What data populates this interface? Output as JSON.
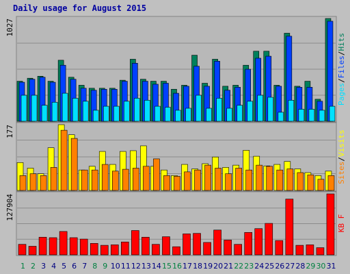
{
  "page_title": "Daily usage for August 2015",
  "colors": {
    "background": "#c0c0c0",
    "plot": "#b8b8b8",
    "hits": "#00805c",
    "files": "#0040ff",
    "pages": "#00e0ff",
    "visits": "#ffff00",
    "sites": "#ff8000",
    "kbytes": "#ff0000",
    "weekday_label": "#000080",
    "weekend_label": "#008040"
  },
  "chart_data": [
    {
      "type": "bar",
      "title": "Daily usage for August 2015",
      "categories": [
        "1",
        "2",
        "3",
        "4",
        "5",
        "6",
        "7",
        "8",
        "9",
        "10",
        "11",
        "12",
        "13",
        "14",
        "15",
        "16",
        "17",
        "18",
        "19",
        "20",
        "21",
        "22",
        "23",
        "24",
        "25",
        "26",
        "27",
        "28",
        "29",
        "30",
        "31"
      ],
      "weekend_days": [
        "1",
        "2",
        "8",
        "9",
        "15",
        "16",
        "22",
        "23",
        "29",
        "30"
      ],
      "ylim": [
        0,
        1027
      ],
      "ymax_label": "1027",
      "legend": [
        "Pages",
        "Files",
        "Hits"
      ],
      "legend_separator": "/",
      "series": [
        {
          "name": "Hits",
          "values": [
            400,
            430,
            450,
            400,
            610,
            440,
            360,
            330,
            330,
            330,
            410,
            620,
            420,
            400,
            400,
            320,
            360,
            660,
            380,
            620,
            350,
            360,
            560,
            700,
            700,
            360,
            880,
            350,
            400,
            220,
            1027
          ]
        },
        {
          "name": "Files",
          "values": [
            390,
            420,
            440,
            390,
            560,
            420,
            330,
            310,
            320,
            320,
            400,
            580,
            400,
            370,
            380,
            280,
            350,
            550,
            350,
            600,
            310,
            340,
            520,
            630,
            650,
            350,
            850,
            340,
            340,
            200,
            1000
          ]
        },
        {
          "name": "Pages",
          "values": [
            260,
            260,
            160,
            190,
            280,
            230,
            200,
            110,
            150,
            150,
            200,
            230,
            210,
            150,
            140,
            110,
            130,
            260,
            130,
            230,
            130,
            160,
            200,
            260,
            240,
            90,
            210,
            120,
            120,
            110,
            150
          ]
        }
      ]
    },
    {
      "type": "bar",
      "categories": [
        "1",
        "2",
        "3",
        "4",
        "5",
        "6",
        "7",
        "8",
        "9",
        "10",
        "11",
        "12",
        "13",
        "14",
        "15",
        "16",
        "17",
        "18",
        "19",
        "20",
        "21",
        "22",
        "23",
        "24",
        "25",
        "26",
        "27",
        "28",
        "29",
        "30",
        "31"
      ],
      "ylim": [
        0,
        177
      ],
      "ymax_label": "177",
      "legend": [
        "Sites",
        "Visits"
      ],
      "legend_separator": "/",
      "series": [
        {
          "name": "Visits",
          "values": [
            75,
            60,
            45,
            115,
            177,
            150,
            55,
            65,
            105,
            70,
            105,
            107,
            120,
            65,
            55,
            40,
            70,
            58,
            72,
            90,
            62,
            68,
            108,
            92,
            66,
            70,
            78,
            58,
            48,
            40,
            52
          ]
        },
        {
          "name": "Sites",
          "values": [
            40,
            45,
            40,
            62,
            162,
            140,
            55,
            55,
            70,
            52,
            57,
            60,
            65,
            85,
            40,
            38,
            50,
            55,
            68,
            60,
            45,
            60,
            55,
            68,
            65,
            55,
            58,
            48,
            42,
            30,
            40
          ]
        }
      ]
    },
    {
      "type": "bar",
      "categories": [
        "1",
        "2",
        "3",
        "4",
        "5",
        "6",
        "7",
        "8",
        "9",
        "10",
        "11",
        "12",
        "13",
        "14",
        "15",
        "16",
        "17",
        "18",
        "19",
        "20",
        "21",
        "22",
        "23",
        "24",
        "25",
        "26",
        "27",
        "28",
        "29",
        "30",
        "31"
      ],
      "ylim": [
        0,
        127904
      ],
      "ymax_label": "127904",
      "legend": [
        "KB",
        "F"
      ],
      "legend_separator": " ",
      "series": [
        {
          "name": "KB F",
          "values": [
            22000,
            18000,
            37000,
            36000,
            49000,
            36000,
            33000,
            24000,
            20000,
            21000,
            27000,
            51000,
            37000,
            22000,
            38000,
            17000,
            44000,
            45000,
            26000,
            52000,
            31000,
            22000,
            47000,
            55000,
            66000,
            30000,
            117000,
            20000,
            21000,
            15000,
            127904
          ]
        }
      ]
    }
  ]
}
